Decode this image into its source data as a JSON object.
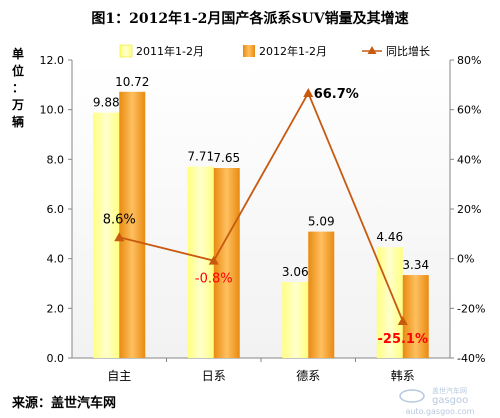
{
  "title": "图1：2012年1-2月国产各派系SUV销量及其增速",
  "y_left_unit_chars": [
    "单",
    "位",
    "：",
    "万",
    "辆"
  ],
  "source": "来源：盖世汽车网",
  "watermark": {
    "text_cn": "盖世汽车网",
    "text_brand": "gasgoo",
    "url": "auto.gasgoo.com"
  },
  "colors": {
    "series2011": "#FFFF99",
    "series2012": "#F7A11A",
    "growth": "#C85A10",
    "growth_label_negative": "#FF0000",
    "growth_label_default": "#000000"
  },
  "chart_data": {
    "type": "bar",
    "categories": [
      "自主",
      "日系",
      "德系",
      "韩系"
    ],
    "series": [
      {
        "name": "2011年1-2月",
        "values": [
          9.88,
          7.71,
          3.06,
          4.46
        ],
        "labels": [
          "9.88",
          "7.71",
          "3.06",
          "4.46"
        ]
      },
      {
        "name": "2012年1-2月",
        "values": [
          10.72,
          7.65,
          5.09,
          3.34
        ],
        "labels": [
          "10.72",
          "7.65",
          "5.09",
          "3.34"
        ]
      }
    ],
    "line_series": {
      "name": "同比增长",
      "type": "line",
      "axis": "right",
      "values": [
        8.6,
        -0.8,
        66.7,
        -25.1
      ],
      "labels": [
        "8.6%",
        "-0.8%",
        "66.7%",
        "-25.1%"
      ]
    },
    "y_left": {
      "lim": [
        0,
        12
      ],
      "ticks": [
        "0.0",
        "2.0",
        "4.0",
        "6.0",
        "8.0",
        "10.0",
        "12.0"
      ],
      "tick_values": [
        0,
        2,
        4,
        6,
        8,
        10,
        12
      ]
    },
    "y_right": {
      "lim": [
        -40,
        80
      ],
      "ticks": [
        "-40%",
        "-20%",
        "0%",
        "20%",
        "40%",
        "60%",
        "80%"
      ],
      "tick_values": [
        -40,
        -20,
        0,
        20,
        40,
        60,
        80
      ]
    },
    "legend_position": "top",
    "grid": false
  }
}
